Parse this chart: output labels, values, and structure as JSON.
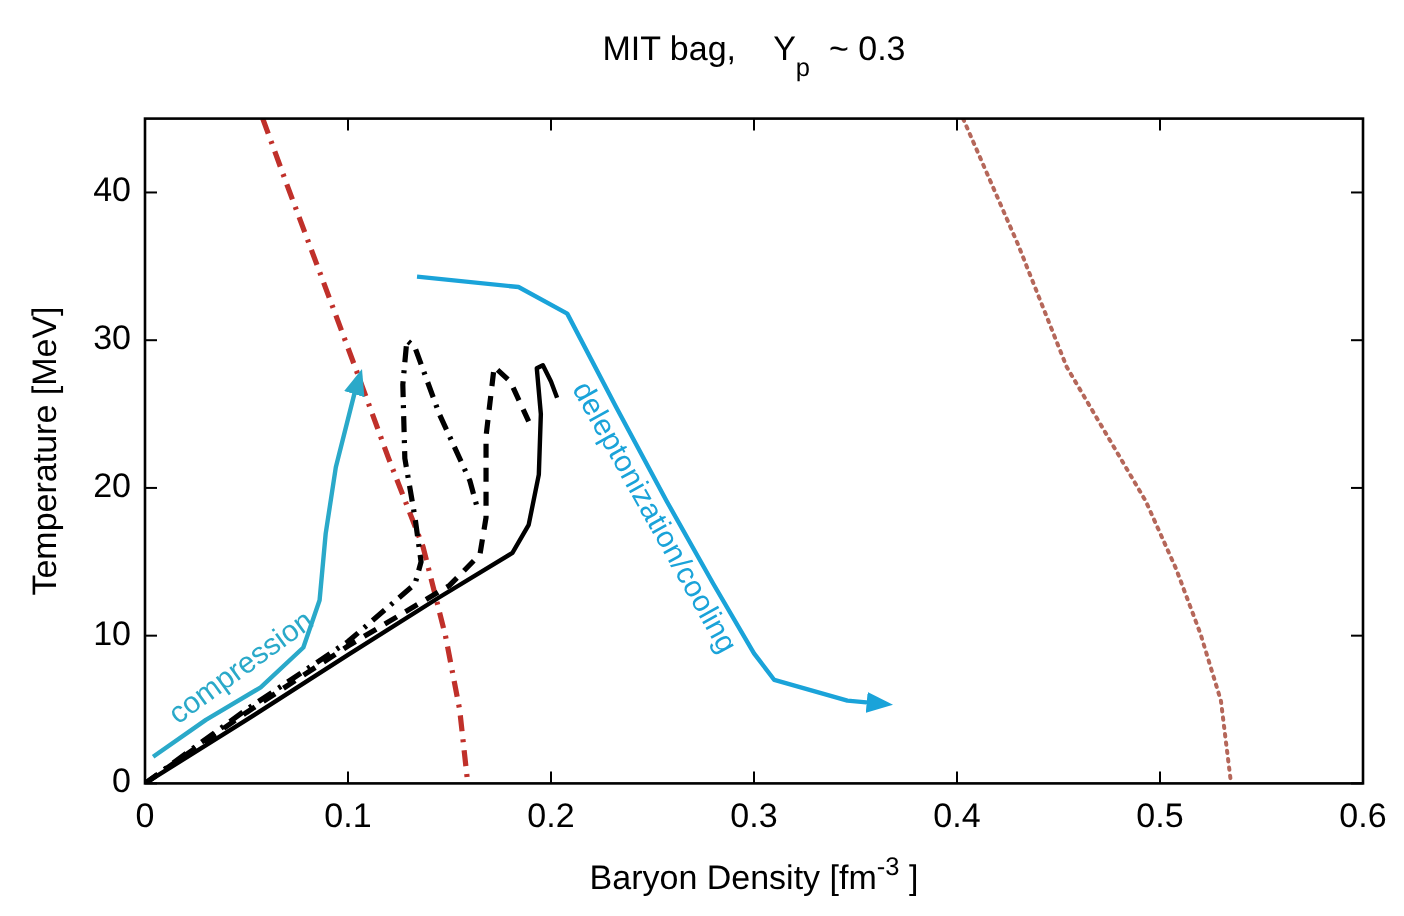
{
  "chart_data": {
    "type": "line",
    "title": "MIT bag,    Y$_{p}$ ~ 0.3",
    "xlabel": "Baryon Density  [fm$^{-3}$]",
    "ylabel": "Temperature  [MeV]",
    "xlim": [
      0,
      0.6
    ],
    "ylim": [
      0,
      45
    ],
    "xticks": [
      0,
      0.1,
      0.2,
      0.3,
      0.4,
      0.5,
      0.6
    ],
    "yticks": [
      0,
      10,
      20,
      30,
      40
    ],
    "grid": false,
    "series": [
      {
        "color": "#c0302a",
        "line_style": "dashdot",
        "x": [
          0.058,
          0.07,
          0.085,
          0.104,
          0.12,
          0.137,
          0.148,
          0.155,
          0.159
        ],
        "values": [
          45,
          40.5,
          35,
          28,
          22,
          16,
          10,
          5,
          0
        ]
      },
      {
        "color": "#b5675a",
        "line_style": "dotted",
        "x": [
          0.403,
          0.43,
          0.454,
          0.475,
          0.493,
          0.508,
          0.52,
          0.53,
          0.535
        ],
        "values": [
          45,
          36.5,
          28.2,
          23.3,
          19.1,
          14.5,
          10.1,
          5.6,
          0
        ]
      },
      {
        "color": "#2aa9c9",
        "line_style": "solid",
        "x": [
          0.004,
          0.03,
          0.057,
          0.078,
          0.086,
          0.089,
          0.094,
          0.103,
          0.105
        ],
        "values": [
          1.8,
          4.3,
          6.5,
          9.2,
          12.4,
          16.9,
          21.4,
          26.3,
          27.2
        ]
      },
      {
        "color": "#1aa3d9",
        "line_style": "solid",
        "x": [
          0.134,
          0.184,
          0.208,
          0.232,
          0.257,
          0.28,
          0.3,
          0.31,
          0.346,
          0.362
        ],
        "values": [
          34.3,
          33.6,
          31.8,
          25.5,
          19.1,
          13.5,
          8.8,
          7,
          5.6,
          5.4
        ]
      },
      {
        "color": "#000000",
        "line_style": "solid",
        "x": [
          0,
          0.05,
          0.1,
          0.145,
          0.181,
          0.189,
          0.194,
          0.195,
          0.193,
          0.196,
          0.2,
          0.203
        ],
        "values": [
          0,
          4.3,
          8.7,
          12.6,
          15.6,
          17.5,
          20.9,
          25,
          28.1,
          28.3,
          27.2,
          26.1
        ]
      },
      {
        "color": "#000000",
        "line_style": "dashed",
        "x": [
          0,
          0.05,
          0.1,
          0.15,
          0.165,
          0.168,
          0.168,
          0.172,
          0.18,
          0.189
        ],
        "values": [
          0,
          4.8,
          9.3,
          13.4,
          15.5,
          18,
          23.5,
          28.2,
          27.2,
          24.5
        ]
      },
      {
        "color": "#000000",
        "line_style": "dashdot",
        "x": [
          0,
          0.05,
          0.1,
          0.133,
          0.136,
          0.133,
          0.128,
          0.127,
          0.129,
          0.133,
          0.145,
          0.155,
          0.16,
          0.164
        ],
        "values": [
          0,
          5,
          9.6,
          13.5,
          15,
          18,
          22,
          27,
          30,
          29.5,
          25,
          22,
          20.5,
          18.5
        ]
      }
    ],
    "annotations": [
      "compression",
      "deleptonization/cooling"
    ]
  }
}
